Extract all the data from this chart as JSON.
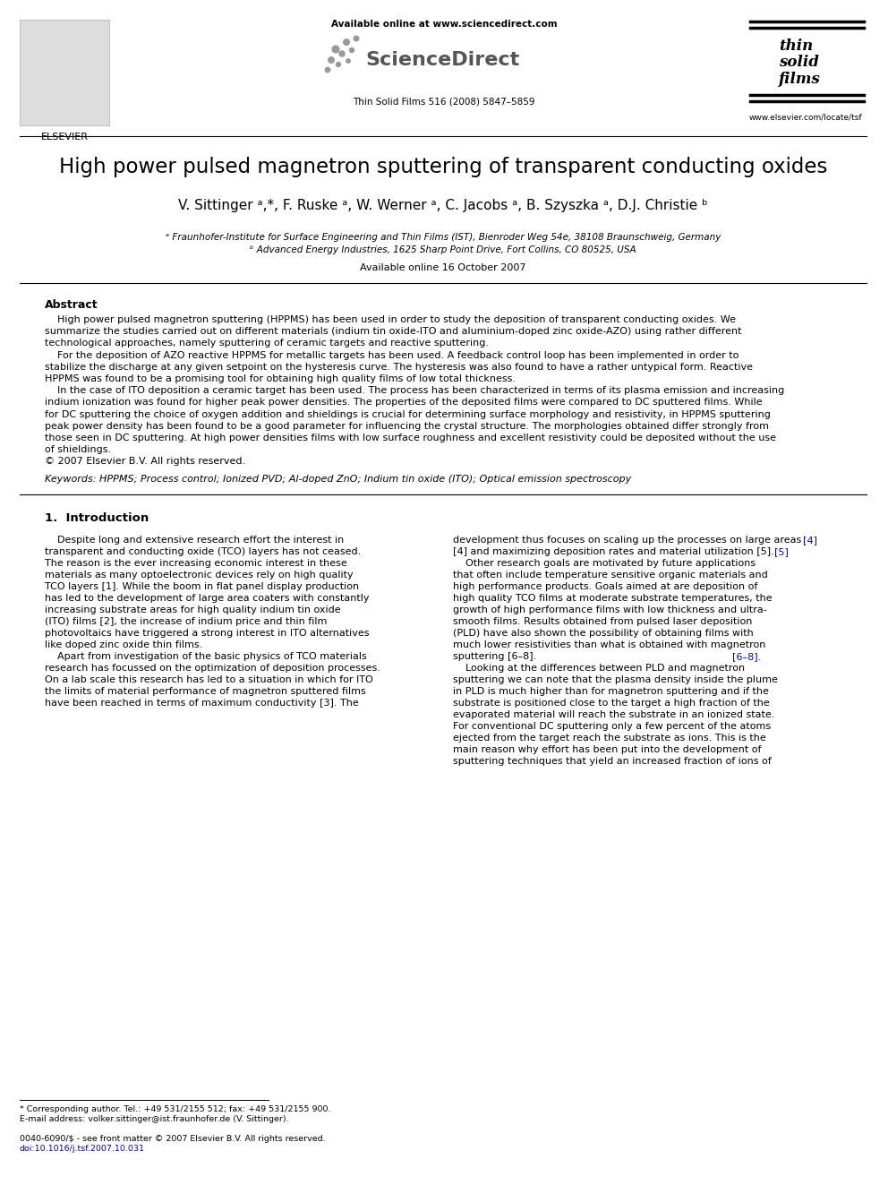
{
  "bg_color": "#ffffff",
  "title": "High power pulsed magnetron sputtering of transparent conducting oxides",
  "authors": "V. Sittinger ᵃ,*, F. Ruske ᵃ, W. Werner ᵃ, C. Jacobs ᵃ, B. Szyszka ᵃ, D.J. Christie ᵇ",
  "affil_a": "ᵃ Fraunhofer-Institute for Surface Engineering and Thin Films (IST), Bienroder Weg 54e, 38108 Braunschweig, Germany",
  "affil_b": "ᵇ Advanced Energy Industries, 1625 Sharp Point Drive, Fort Collins, CO 80525, USA",
  "available_online_paper": "Available online 16 October 2007",
  "journal_ref": "Thin Solid Films 516 (2008) 5847–5859",
  "header_text": "Available online at www.sciencedirect.com",
  "elsevier_label": "ELSEVIER",
  "sciencedirect_label": "ScienceDirect",
  "website": "www.elsevier.com/locate/tsf",
  "abstract_title": "Abstract",
  "keywords_text": "Keywords: HPPMS; Process control; Ionized PVD; Al-doped ZnO; Indium tin oxide (ITO); Optical emission spectroscopy",
  "intro_title": "1.  Introduction",
  "footnote_corr": "* Corresponding author. Tel.: +49 531/2155 512; fax: +49 531/2155 900.",
  "footnote_email": "E-mail address: volker.sittinger@ist.fraunhofer.de (V. Sittinger).",
  "footnote_issn": "0040-6090/$ - see front matter © 2007 Elsevier B.V. All rights reserved.",
  "footnote_doi": "doi:10.1016/j.tsf.2007.10.031",
  "link_color": "#0000cc",
  "text_color": "#000000",
  "gray_color": "#555555"
}
